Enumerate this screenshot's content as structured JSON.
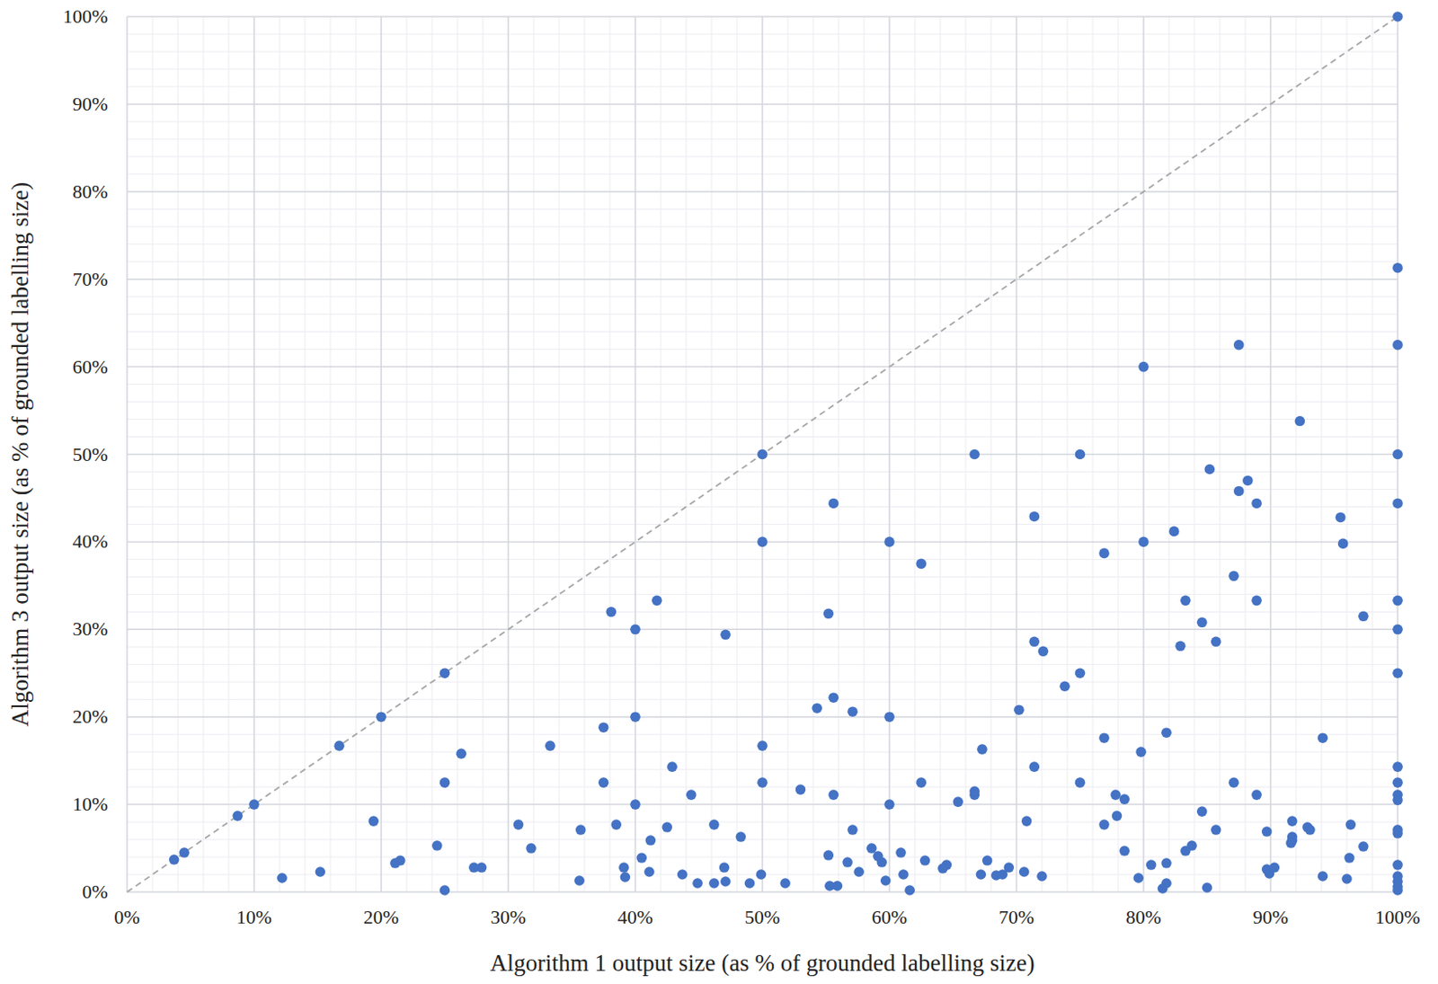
{
  "chart_data": {
    "type": "scatter",
    "x_label": "Algorithm 1 output size (as % of grounded labelling size)",
    "y_label": "Algorithm 3 output size (as % of grounded labelling size)",
    "color": "#4472c4",
    "marker": "circle",
    "grid": true,
    "xlim": [
      0,
      100
    ],
    "ylim": [
      0,
      100
    ],
    "xticks": [
      {
        "value": 0,
        "label": "0%"
      },
      {
        "value": 10,
        "label": "10%"
      },
      {
        "value": 20,
        "label": "20%"
      },
      {
        "value": 30,
        "label": "30%"
      },
      {
        "value": 40,
        "label": "40%"
      },
      {
        "value": 50,
        "label": "50%"
      },
      {
        "value": 60,
        "label": "60%"
      },
      {
        "value": 70,
        "label": "70%"
      },
      {
        "value": 80,
        "label": "80%"
      },
      {
        "value": 90,
        "label": "90%"
      },
      {
        "value": 100,
        "label": "100%"
      }
    ],
    "yticks": [
      {
        "value": 0,
        "label": "0%"
      },
      {
        "value": 10,
        "label": "10%"
      },
      {
        "value": 20,
        "label": "20%"
      },
      {
        "value": 30,
        "label": "30%"
      },
      {
        "value": 40,
        "label": "40%"
      },
      {
        "value": 50,
        "label": "50%"
      },
      {
        "value": 60,
        "label": "60%"
      },
      {
        "value": 70,
        "label": "70%"
      },
      {
        "value": 80,
        "label": "80%"
      },
      {
        "value": 90,
        "label": "90%"
      },
      {
        "value": 100,
        "label": "100%"
      }
    ],
    "x": [
      100,
      100,
      100,
      100,
      100,
      100,
      100,
      100,
      100,
      100,
      100,
      100,
      100,
      100,
      100,
      100,
      100,
      100,
      100,
      87.5,
      80,
      92.3,
      66.7,
      75,
      50,
      55.6,
      85.2,
      88.2,
      87.5,
      88.9,
      71.4,
      95.5,
      95.7,
      82.4,
      76.9,
      60,
      50,
      80,
      62.5,
      87.1,
      83.3,
      88.9,
      41.7,
      38.1,
      55.2,
      97.3,
      84.6,
      40,
      47.1,
      71.4,
      85.7,
      82.9,
      72.1,
      25,
      75,
      73.8,
      55.6,
      54.3,
      57.1,
      70.2,
      20,
      40,
      60,
      37.5,
      81.8,
      76.9,
      94.1,
      16.7,
      33.3,
      50,
      67.3,
      26.3,
      79.8,
      42.9,
      71.4,
      25,
      37.5,
      50,
      62.5,
      75,
      87.1,
      53,
      66.7,
      66.7,
      44.4,
      55.6,
      77.8,
      78.5,
      88.9,
      65.4,
      10,
      40,
      60,
      8.7,
      19.4,
      70.8,
      91.7,
      77.9,
      84.6,
      30.8,
      38.5,
      46.2,
      35.7,
      42.5,
      57.1,
      76.9,
      85.7,
      89.7,
      92.9,
      93.1,
      96.3,
      91.7,
      91.7,
      48.3,
      41.2,
      91.6,
      97.3,
      24.4,
      31.8,
      58.6,
      4.5,
      3.7,
      59.1,
      60.9,
      78.5,
      83.3,
      83.8,
      55.2,
      40.5,
      21.1,
      21.5,
      56.7,
      59.4,
      62.8,
      64.5,
      64.2,
      67.7,
      39.1,
      47,
      27.3,
      27.9,
      15.2,
      41.1,
      57.6,
      69.4,
      70.6,
      80.6,
      81.8,
      89.7,
      90.3,
      89.9,
      43.7,
      49.9,
      61.1,
      67.2,
      68.9,
      68.4,
      72,
      12.2,
      35.6,
      39.2,
      79.6,
      94.1,
      96,
      96.2,
      44.9,
      46.2,
      47.1,
      49,
      51.8,
      59.7,
      55.3,
      55.9,
      81.8,
      81.5,
      85,
      61.6,
      25
    ],
    "values": [
      100,
      71.3,
      62.5,
      50,
      44.4,
      33.3,
      30,
      25,
      14.3,
      12.5,
      11.1,
      10.5,
      7.1,
      6.7,
      3.1,
      1.8,
      1.2,
      0.6,
      0.2,
      62.5,
      60,
      53.8,
      50,
      50,
      50,
      44.4,
      48.3,
      47,
      45.8,
      44.4,
      42.9,
      42.8,
      39.8,
      41.2,
      38.7,
      40,
      40,
      40,
      37.5,
      36.1,
      33.3,
      33.3,
      33.3,
      32,
      31.8,
      31.5,
      30.8,
      30,
      29.4,
      28.6,
      28.6,
      28.1,
      27.5,
      25,
      25,
      23.5,
      22.2,
      21,
      20.6,
      20.8,
      20,
      20,
      20,
      18.8,
      18.2,
      17.6,
      17.6,
      16.7,
      16.7,
      16.7,
      16.3,
      15.8,
      16,
      14.3,
      14.3,
      12.5,
      12.5,
      12.5,
      12.5,
      12.5,
      12.5,
      11.7,
      11.5,
      11.1,
      11.1,
      11.1,
      11.1,
      10.6,
      11.1,
      10.3,
      10,
      10,
      10,
      8.7,
      8.1,
      8.1,
      8.1,
      8.7,
      9.2,
      7.7,
      7.7,
      7.7,
      7.1,
      7.4,
      7.1,
      7.7,
      7.1,
      6.9,
      7.4,
      7.1,
      7.7,
      6.3,
      5.9,
      6.3,
      5.9,
      5.6,
      5.2,
      5.3,
      5,
      5,
      4.5,
      3.7,
      4.1,
      4.5,
      4.7,
      4.7,
      5.3,
      4.2,
      3.9,
      3.3,
      3.6,
      3.4,
      3.4,
      3.6,
      3.1,
      2.7,
      3.6,
      2.8,
      2.8,
      2.8,
      2.8,
      2.3,
      2.3,
      2.3,
      2.8,
      2.3,
      3.1,
      3.3,
      2.6,
      2.8,
      2.1,
      2,
      2,
      2,
      2,
      2,
      1.9,
      1.8,
      1.6,
      1.3,
      1.7,
      1.6,
      1.8,
      1.5,
      3.9,
      1,
      1,
      1.2,
      1,
      1,
      1.3,
      0.7,
      0.7,
      1,
      0.4,
      0.5,
      0.2,
      0.2
    ]
  }
}
